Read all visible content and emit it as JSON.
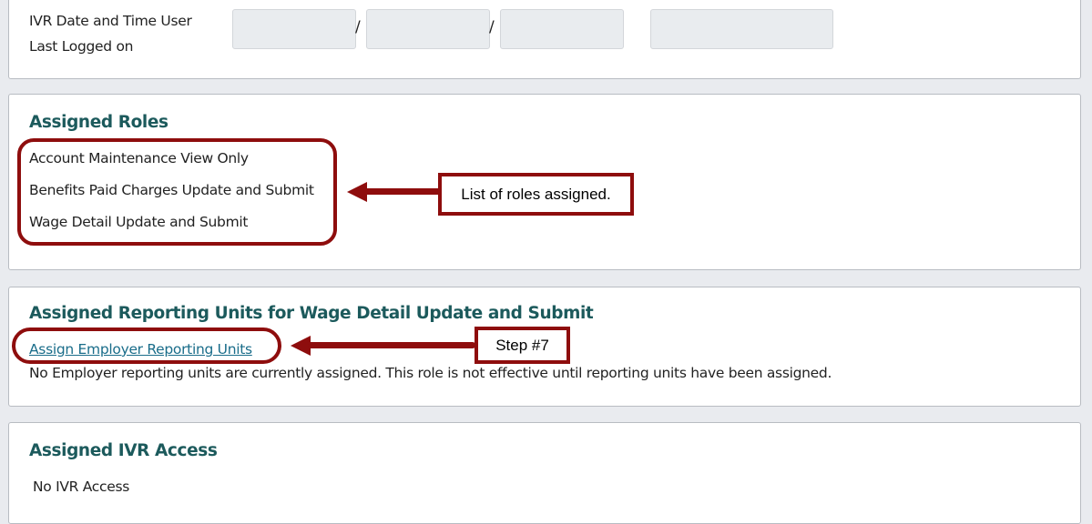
{
  "ivr_last_logged": {
    "label_line1": "IVR Date and Time User",
    "label_line2": "Last Logged on",
    "separator": "/",
    "fields": [
      "",
      "",
      "",
      ""
    ]
  },
  "assigned_roles": {
    "title": "Assigned Roles",
    "roles": [
      "Account Maintenance View Only",
      "Benefits Paid Charges Update and Submit",
      "Wage Detail Update and Submit"
    ],
    "callout": "List of roles assigned."
  },
  "reporting_units": {
    "title": "Assigned Reporting Units for Wage Detail Update and Submit",
    "link": "Assign Employer Reporting Units",
    "message": "No Employer reporting units are currently assigned. This role is not effective until reporting units have been assigned.",
    "callout": "Step #7"
  },
  "ivr_access": {
    "title": "Assigned IVR Access",
    "value": "No IVR Access"
  },
  "colors": {
    "annotation": "#8e0d0d",
    "heading": "#1c5a5c",
    "link": "#1a6d8a",
    "background": "#e9ebef"
  }
}
